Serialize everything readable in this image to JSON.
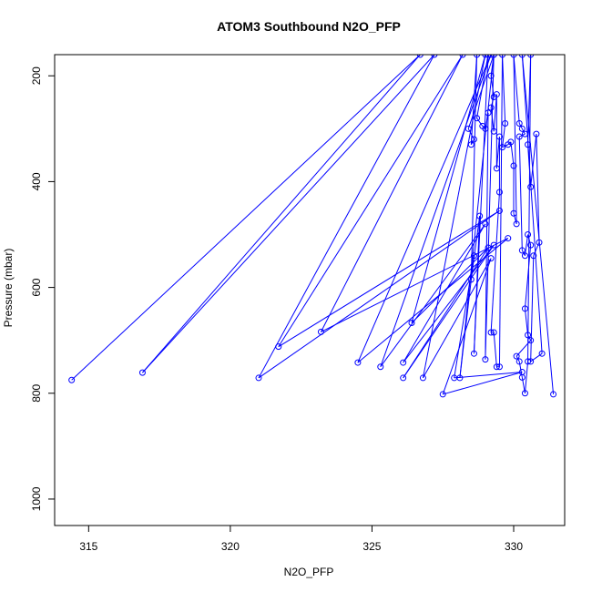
{
  "chart_data": {
    "type": "line",
    "title": "ATOM3 Southbound N2O_PFP",
    "xlabel": "N2O_PFP",
    "ylabel": "Pressure (mbar)",
    "xlim": [
      313.8,
      331.8
    ],
    "ylim": [
      1050,
      160
    ],
    "y_reversed": true,
    "xticks": [
      315,
      320,
      325,
      330
    ],
    "yticks": [
      200,
      400,
      600,
      800,
      1000
    ],
    "grid": false,
    "legend": "none",
    "series": [
      {
        "color": "#0000ff",
        "marker": "open-circle",
        "points": [
          [
            314.4,
            775
          ],
          [
            326.7,
            160
          ],
          [
            316.9,
            761
          ],
          [
            327.2,
            160
          ],
          [
            321.0,
            771
          ],
          [
            329.5,
            455
          ],
          [
            321.7,
            712
          ],
          [
            328.2,
            160
          ],
          [
            323.2,
            684
          ],
          [
            329.8,
            507
          ],
          [
            324.5,
            742
          ],
          [
            329.2,
            160
          ],
          [
            325.3,
            750
          ],
          [
            329.0,
            480
          ],
          [
            326.1,
            742
          ],
          [
            329.3,
            520
          ],
          [
            326.1,
            771
          ],
          [
            329.1,
            525
          ],
          [
            326.4,
            667
          ],
          [
            329.0,
            160
          ],
          [
            326.8,
            771
          ],
          [
            329.2,
            545
          ],
          [
            327.5,
            802
          ],
          [
            330.3,
            760
          ],
          [
            327.9,
            771
          ],
          [
            328.6,
            540
          ],
          [
            328.1,
            771
          ],
          [
            329.3,
            160
          ],
          [
            328.4,
            300
          ],
          [
            328.6,
            320
          ],
          [
            328.5,
            330
          ],
          [
            328.7,
            160
          ],
          [
            328.5,
            585
          ],
          [
            328.8,
            465
          ],
          [
            328.6,
            725
          ],
          [
            329.1,
            160
          ],
          [
            328.7,
            280
          ],
          [
            328.9,
            295
          ],
          [
            329.0,
            300
          ],
          [
            329.1,
            270
          ],
          [
            329.0,
            736
          ],
          [
            329.3,
            160
          ],
          [
            329.2,
            200
          ],
          [
            329.3,
            240
          ],
          [
            329.2,
            260
          ],
          [
            329.3,
            305
          ],
          [
            329.4,
            235
          ],
          [
            329.4,
            375
          ],
          [
            329.5,
            315
          ],
          [
            329.5,
            420
          ],
          [
            329.2,
            685
          ],
          [
            329.3,
            685
          ],
          [
            329.4,
            750
          ],
          [
            329.5,
            750
          ],
          [
            329.6,
            160
          ],
          [
            329.7,
            290
          ],
          [
            329.6,
            335
          ],
          [
            329.8,
            330
          ],
          [
            329.9,
            325
          ],
          [
            330.0,
            370
          ],
          [
            330.0,
            460
          ],
          [
            330.1,
            480
          ],
          [
            330.0,
            160
          ],
          [
            330.2,
            290
          ],
          [
            330.3,
            300
          ],
          [
            330.4,
            310
          ],
          [
            330.2,
            315
          ],
          [
            330.3,
            530
          ],
          [
            330.4,
            540
          ],
          [
            330.5,
            500
          ],
          [
            330.6,
            520
          ],
          [
            330.4,
            640
          ],
          [
            330.5,
            690
          ],
          [
            330.6,
            700
          ],
          [
            330.1,
            730
          ],
          [
            330.2,
            740
          ],
          [
            330.3,
            770
          ],
          [
            330.4,
            800
          ],
          [
            330.5,
            740
          ],
          [
            330.6,
            160
          ],
          [
            330.5,
            330
          ],
          [
            330.6,
            410
          ],
          [
            330.8,
            310
          ],
          [
            330.9,
            515
          ],
          [
            330.7,
            540
          ],
          [
            330.6,
            740
          ],
          [
            331.0,
            725
          ],
          [
            330.3,
            160
          ],
          [
            331.4,
            802
          ]
        ]
      }
    ]
  }
}
